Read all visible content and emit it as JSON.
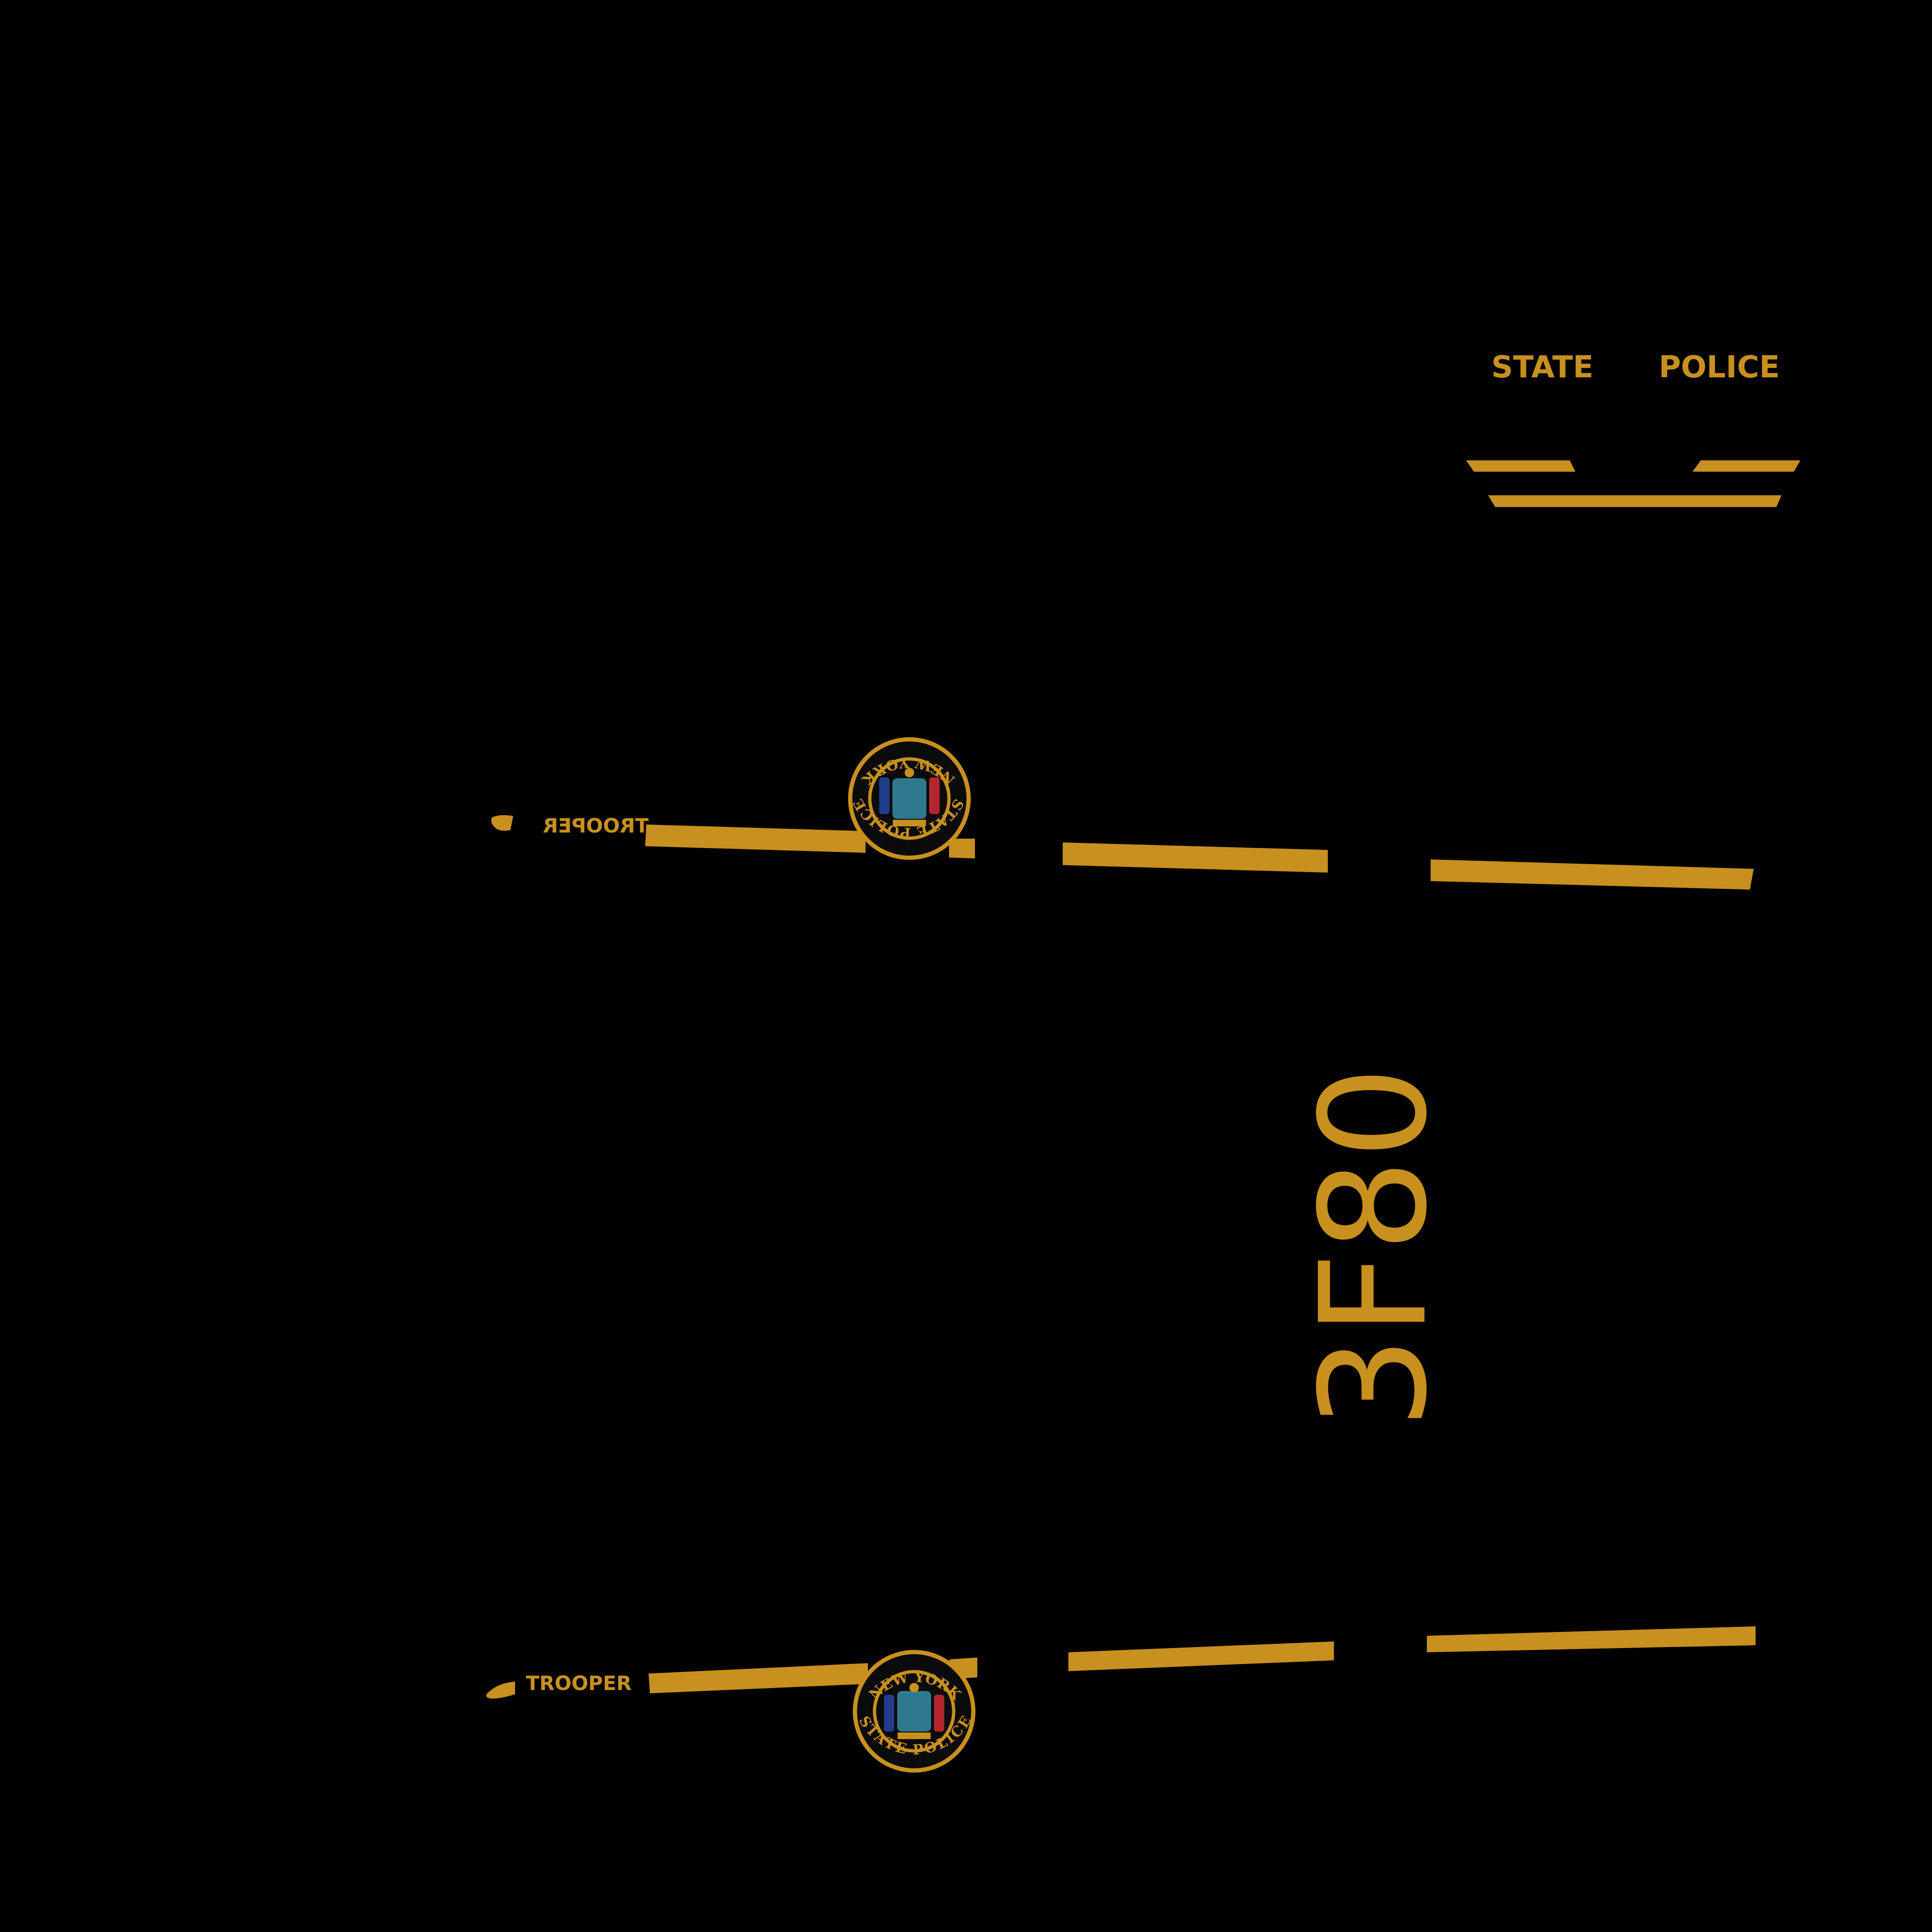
{
  "colors": {
    "background": "#000000",
    "gold": "#C8901E",
    "seal_ring": "#C8901E",
    "seal_inner": "#0B0B0B",
    "seal_shield": "#2E7A8C",
    "seal_blue": "#1F3D8A",
    "seal_red": "#B3262E"
  },
  "roof": {
    "word_left": "STATE",
    "word_right": "POLICE"
  },
  "unit_number": "3F80",
  "side_upper": {
    "label": "TROOPER",
    "seal_top": "STATE POLICE",
    "seal_bottom": "NEW YORK"
  },
  "side_lower": {
    "label": "TROOPER",
    "seal_top": "NEW YORK",
    "seal_bottom": "STATE POLICE"
  }
}
